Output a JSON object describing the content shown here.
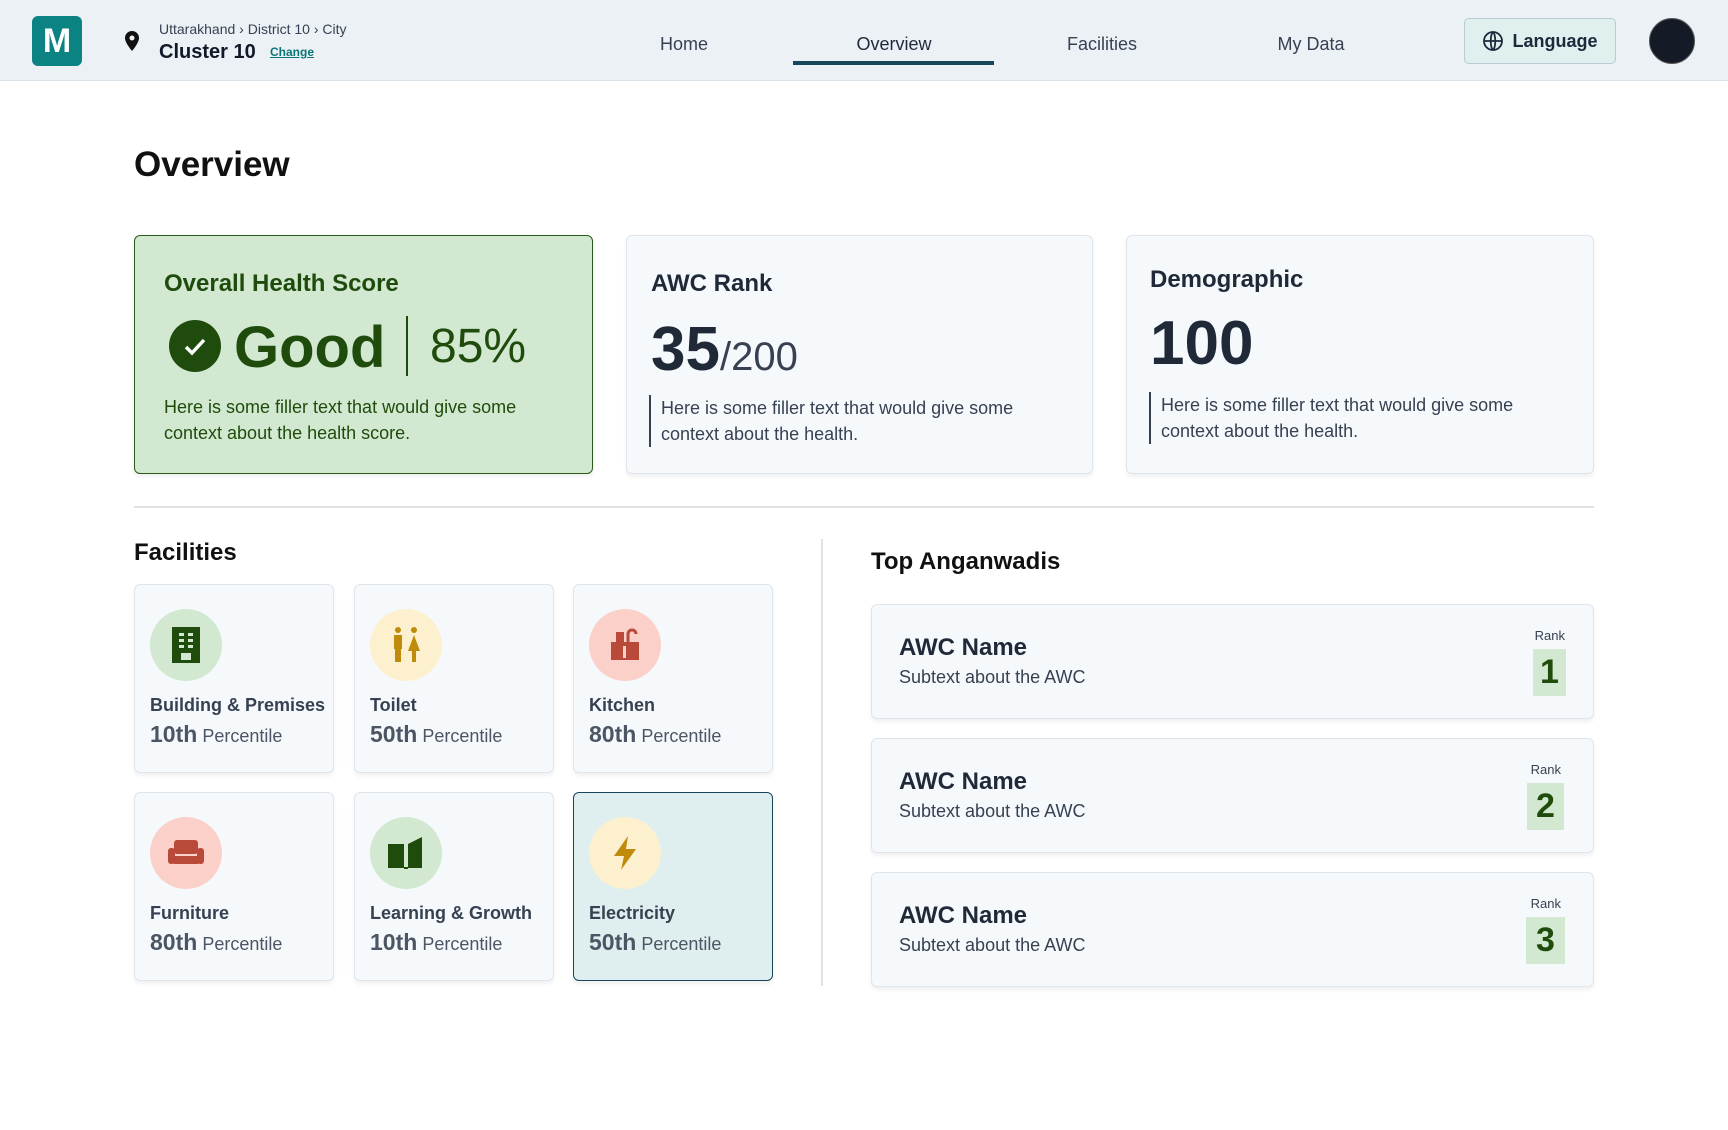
{
  "header": {
    "logo": "M",
    "breadcrumb": [
      "Uttarakhand",
      "District 10",
      "City"
    ],
    "cluster": "Cluster 10",
    "change": "Change",
    "nav": [
      {
        "label": "Home"
      },
      {
        "label": "Overview",
        "active": true
      },
      {
        "label": "Facilities"
      },
      {
        "label": "My Data"
      }
    ],
    "language": "Language"
  },
  "page_title": "Overview",
  "health": {
    "title": "Overall Health Score",
    "status": "Good",
    "percent": "85%",
    "text": "Here is some filler text that would give some context about the health score."
  },
  "rank": {
    "title": "AWC Rank",
    "value": "35",
    "total": "/200",
    "text": "Here is some filler text that would give some context about the health."
  },
  "demographic": {
    "title": "Demographic",
    "value": "100",
    "text": "Here is some filler text that would give some context about the health."
  },
  "facilities": {
    "title": "Facilities",
    "suffix": "Percentile",
    "items": [
      {
        "name": "Building & Premises",
        "pct": "10th",
        "icon": "building-icon"
      },
      {
        "name": "Toilet",
        "pct": "50th",
        "icon": "toilet-icon"
      },
      {
        "name": "Kitchen",
        "pct": "80th",
        "icon": "kitchen-icon"
      },
      {
        "name": "Furniture",
        "pct": "80th",
        "icon": "sofa-icon"
      },
      {
        "name": "Learning & Growth",
        "pct": "10th",
        "icon": "book-icon"
      },
      {
        "name": "Electricity",
        "pct": "50th",
        "icon": "lightning-icon"
      }
    ]
  },
  "top": {
    "title": "Top Anganwadis",
    "rank_label": "Rank",
    "items": [
      {
        "name": "AWC Name",
        "sub": "Subtext about the AWC",
        "rank": "1"
      },
      {
        "name": "AWC Name",
        "sub": "Subtext about the AWC",
        "rank": "2"
      },
      {
        "name": "AWC Name",
        "sub": "Subtext about the AWC",
        "rank": "3"
      }
    ]
  },
  "colors": {
    "brand": "#0b8383",
    "good": "#1f4c0c",
    "nav_active": "#17455a"
  }
}
